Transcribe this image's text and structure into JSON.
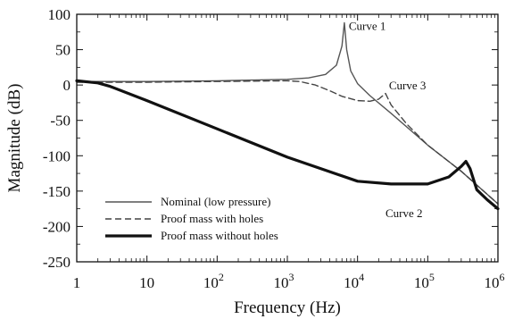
{
  "chart_data": {
    "type": "line",
    "title": "",
    "xlabel": "Frequency (Hz)",
    "ylabel": "Magnitude (dB)",
    "x_scale": "log",
    "xlim": [
      1,
      1000000
    ],
    "ylim": [
      -250,
      100
    ],
    "grid": false,
    "x_ticks": [
      {
        "value": 1,
        "base": "1",
        "exp": ""
      },
      {
        "value": 10,
        "base": "10",
        "exp": ""
      },
      {
        "value": 100,
        "base": "10",
        "exp": "2"
      },
      {
        "value": 1000,
        "base": "10",
        "exp": "3"
      },
      {
        "value": 10000,
        "base": "10",
        "exp": "4"
      },
      {
        "value": 100000,
        "base": "10",
        "exp": "5"
      },
      {
        "value": 1000000,
        "base": "10",
        "exp": "6"
      }
    ],
    "y_ticks": [
      100,
      50,
      0,
      -50,
      -100,
      -150,
      -200,
      -250
    ],
    "legend_position": "bottom-left",
    "series": [
      {
        "name": "Nominal (low pressure)",
        "style": "solid",
        "color": "#555555",
        "x": [
          1,
          10,
          100,
          1000,
          2000,
          3500,
          5000,
          6000,
          6500,
          7000,
          8000,
          10000,
          15000,
          30000,
          100000,
          300000,
          1000000
        ],
        "y": [
          5,
          5,
          6,
          8,
          10,
          15,
          28,
          55,
          88,
          50,
          20,
          2,
          -15,
          -40,
          -85,
          -122,
          -168
        ]
      },
      {
        "name": "Proof mass with holes",
        "style": "dashed",
        "color": "#444444",
        "x": [
          1,
          10,
          100,
          1000,
          1500,
          2500,
          4000,
          6000,
          10000,
          15000,
          20000,
          25000,
          30000,
          50000,
          100000,
          300000,
          1000000
        ],
        "y": [
          4,
          4,
          5,
          6,
          5,
          0,
          -8,
          -16,
          -22,
          -23,
          -20,
          -12,
          -28,
          -55,
          -85,
          -122,
          -168
        ]
      },
      {
        "name": "Proof mass without holes",
        "style": "thick",
        "color": "#111111",
        "x": [
          1,
          2,
          3,
          10,
          100,
          1000,
          10000,
          30000,
          100000,
          200000,
          300000,
          350000,
          400000,
          500000,
          700000,
          1000000
        ],
        "y": [
          6,
          3,
          -2,
          -22,
          -62,
          -102,
          -136,
          -140,
          -140,
          -130,
          -115,
          -108,
          -118,
          -148,
          -162,
          -175
        ]
      }
    ],
    "annotations": [
      {
        "text": "Curve 1",
        "x": 7500,
        "y": 78
      },
      {
        "text": "Curve 3",
        "x": 28000,
        "y": -6
      },
      {
        "text": "Curve 2",
        "x": 25000,
        "y": -187
      }
    ]
  }
}
